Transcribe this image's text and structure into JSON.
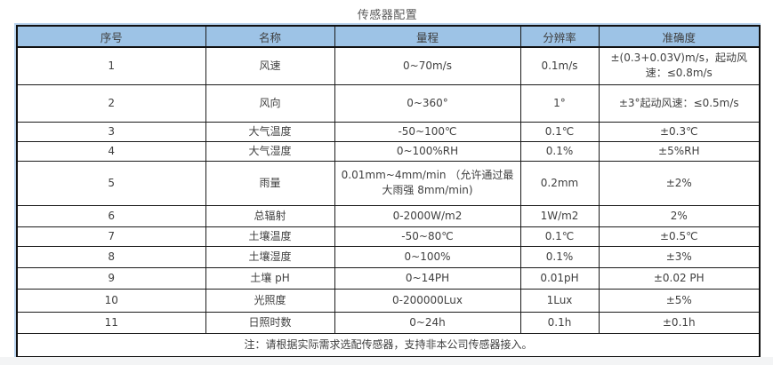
{
  "page": {
    "title": "传感器配置"
  },
  "table": {
    "columns": [
      "序号",
      "名称",
      "量程",
      "分辨率",
      "准确度"
    ],
    "column_keys": [
      "index",
      "name",
      "range",
      "resolution",
      "accuracy"
    ],
    "rows": [
      [
        "1",
        "风速",
        "0~70m/s",
        "0.1m/s",
        "±(0.3+0.03V)m/s，起动风速：≤0.8m/s"
      ],
      [
        "2",
        "风向",
        "0~360°",
        "1°",
        "±3°起动风速：≤0.5m/s"
      ],
      [
        "3",
        "大气温度",
        "-50~100℃",
        "0.1℃",
        "±0.3℃"
      ],
      [
        "4",
        "大气湿度",
        "0~100%RH",
        "0.1%",
        "±5%RH"
      ],
      [
        "5",
        "雨量",
        "0.01mm~4mm/min （允许通过最大雨强 8mm/min)",
        "0.2mm",
        "±2%"
      ],
      [
        "6",
        "总辐射",
        "0-2000W/m2",
        "1W/m2",
        "2%"
      ],
      [
        "7",
        "土壤温度",
        "-50~80℃",
        "0.1℃",
        "±0.5℃"
      ],
      [
        "8",
        "土壤湿度",
        "0~100%",
        "0.1%",
        "±3%"
      ],
      [
        "9",
        "土壤 pH",
        "0~14PH",
        "0.01pH",
        "±0.02 PH"
      ],
      [
        "10",
        "光照度",
        "0-200000Lux",
        "1Lux",
        "±5%"
      ],
      [
        "11",
        "日照时数",
        "0~24h",
        "0.1h",
        "±0.1h"
      ]
    ],
    "note": "注：请根据实际需求选配传感器，支持非本公司传感器接入。"
  },
  "colors": {
    "header_bg": "#9DC3E6",
    "header_fringe": "#B9D3EE",
    "border": "#1A1A1A",
    "text": "#404040",
    "title_text": "#595959",
    "page_bottom_strip": "#F3F4F5"
  }
}
